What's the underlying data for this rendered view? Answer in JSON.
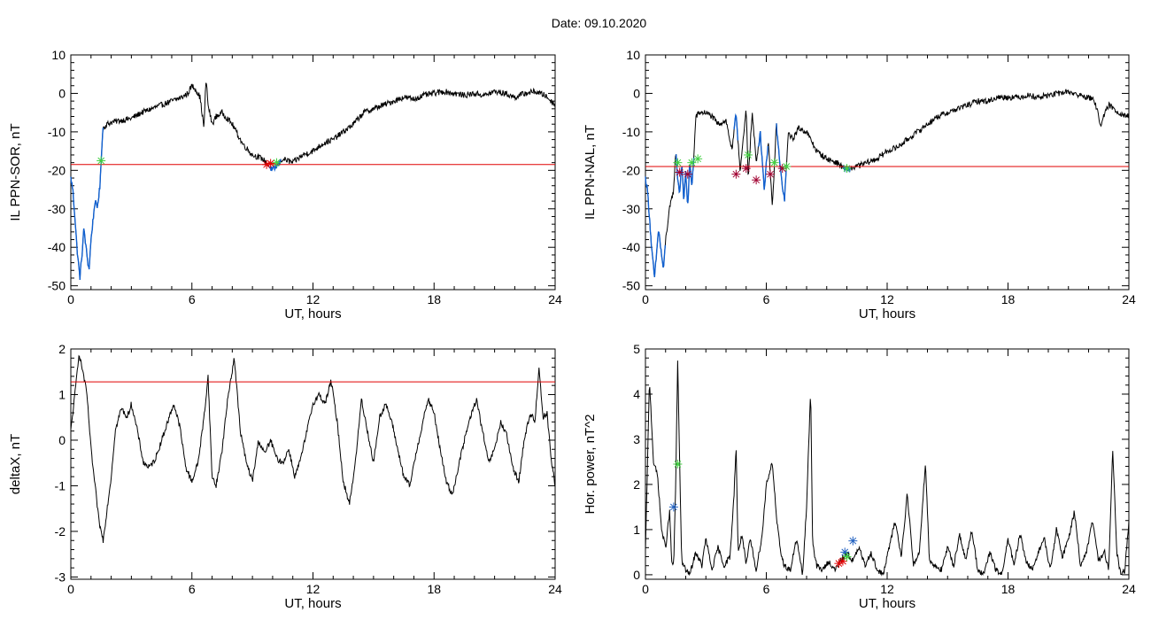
{
  "figure": {
    "title": "Date:  09.10.2020"
  },
  "colors": {
    "trace": "#000000",
    "threshold": "#e00000",
    "highlight": "#1060d0",
    "marker_green": "#40d040",
    "marker_red": "#e00000",
    "marker_blue": "#2060c0",
    "marker_darkred": "#a00030"
  },
  "chart_data": [
    {
      "id": "ppn-sor",
      "type": "line",
      "title": "",
      "xlabel": "UT, hours",
      "ylabel": "IL PPN-SOR, nT",
      "xlim": [
        0,
        24
      ],
      "ylim": [
        -51,
        10
      ],
      "xticks": [
        "0",
        "6",
        "12",
        "18",
        "24"
      ],
      "yticks": [
        "-50",
        "-40",
        "-30",
        "-20",
        "-10",
        "0",
        "10"
      ],
      "threshold": -18.5,
      "series": [
        {
          "x": [
            0,
            0.1,
            0.2,
            0.3,
            0.45,
            0.55,
            0.65,
            0.75,
            0.9,
            1.0,
            1.1,
            1.2,
            1.3,
            1.45,
            1.5,
            1.55,
            1.6,
            1.8,
            2.0,
            2.5,
            3.0,
            3.5,
            4.0,
            4.5,
            5.0,
            5.5,
            5.8,
            6.0,
            6.2,
            6.4,
            6.5,
            6.6,
            6.7,
            6.8,
            7.0,
            7.2,
            7.5,
            8.0,
            8.5,
            9.0,
            9.5,
            10.0,
            10.2,
            10.5,
            11.0,
            11.5,
            12.0,
            12.5,
            13.0,
            13.5,
            14.0,
            14.5,
            15.0,
            15.5,
            16.0,
            16.5,
            17.0,
            17.5,
            18.0,
            18.5,
            19.0,
            19.5,
            20.0,
            20.5,
            21.0,
            21.5,
            22.0,
            22.5,
            23.0,
            23.5,
            24.0
          ],
          "values": [
            -22,
            -25,
            -32,
            -40,
            -48,
            -42,
            -35,
            -40,
            -46,
            -38,
            -33,
            -28,
            -30,
            -24,
            -18,
            -12,
            -9,
            -8,
            -7.5,
            -7,
            -6.5,
            -5,
            -4,
            -3,
            -2,
            -1,
            0,
            2,
            1,
            -1,
            -5,
            -9,
            4,
            -3,
            -8,
            -6,
            -5,
            -8,
            -13,
            -16,
            -17,
            -20,
            -19,
            -17,
            -18,
            -16,
            -15,
            -13,
            -12,
            -10,
            -8,
            -5,
            -4,
            -3,
            -2,
            -1,
            -1.5,
            -0.5,
            0,
            0.5,
            0,
            -0.5,
            0,
            -0.5,
            0.5,
            0,
            -1,
            0,
            0.5,
            -0.5,
            -3
          ]
        }
      ],
      "highlight_segments": [
        [
          0,
          1.6
        ],
        [
          9.8,
          10.4
        ]
      ],
      "markers": [
        {
          "x": 1.5,
          "y": -17.5,
          "color": "green"
        },
        {
          "x": 9.7,
          "y": -18.5,
          "color": "red"
        },
        {
          "x": 9.9,
          "y": -18.2,
          "color": "red"
        },
        {
          "x": 10.2,
          "y": -18,
          "color": "green"
        }
      ]
    },
    {
      "id": "ppn-nal",
      "type": "line",
      "title": "",
      "xlabel": "UT, hours",
      "ylabel": "IL PPN-NAL, nT",
      "xlim": [
        0,
        24
      ],
      "ylim": [
        -51,
        10
      ],
      "xticks": [
        "0",
        "6",
        "12",
        "18",
        "24"
      ],
      "yticks": [
        "-50",
        "-40",
        "-30",
        "-20",
        "-10",
        "0",
        "10"
      ],
      "threshold": -19,
      "series": [
        {
          "x": [
            0,
            0.1,
            0.2,
            0.3,
            0.45,
            0.55,
            0.65,
            0.75,
            0.9,
            1.0,
            1.2,
            1.4,
            1.5,
            1.6,
            1.7,
            1.8,
            1.9,
            2.0,
            2.1,
            2.2,
            2.3,
            2.4,
            2.5,
            2.7,
            3.0,
            3.3,
            3.6,
            4.0,
            4.3,
            4.5,
            4.7,
            4.9,
            5.0,
            5.1,
            5.3,
            5.5,
            5.7,
            5.9,
            6.1,
            6.3,
            6.5,
            6.7,
            6.9,
            7.1,
            7.3,
            7.6,
            8.0,
            8.5,
            9.0,
            9.5,
            10.0,
            10.5,
            11.0,
            11.5,
            12.0,
            12.5,
            13.0,
            13.5,
            14.0,
            14.5,
            15.0,
            15.5,
            16.0,
            16.5,
            17.0,
            17.5,
            18.0,
            18.5,
            19.0,
            19.5,
            20.0,
            20.5,
            21.0,
            21.5,
            22.0,
            22.3,
            22.6,
            23.0,
            23.5,
            24.0
          ],
          "values": [
            -22,
            -25,
            -32,
            -40,
            -48,
            -42,
            -35,
            -40,
            -46,
            -38,
            -30,
            -25,
            -15,
            -22,
            -26,
            -18,
            -28,
            -20,
            -30,
            -18,
            -24,
            -17,
            -6,
            -5,
            -5,
            -6,
            -8,
            -7,
            -15,
            -5,
            -20,
            -10,
            -4,
            -22,
            -5,
            -18,
            -10,
            -25,
            -12,
            -30,
            -8,
            -20,
            -28,
            -10,
            -12,
            -9,
            -10,
            -15,
            -17,
            -18,
            -20,
            -19,
            -18,
            -17,
            -15,
            -14,
            -12,
            -10,
            -8,
            -6,
            -5,
            -4,
            -3,
            -2,
            -2,
            -1,
            -1,
            -1,
            -0.5,
            -1,
            -0.5,
            0,
            0.5,
            -0.5,
            -1,
            -2,
            -8,
            -3,
            -5,
            -6
          ]
        }
      ],
      "highlight_segments": [
        [
          0,
          1.0
        ],
        [
          1.5,
          2.4
        ],
        [
          4.4,
          4.6
        ],
        [
          5.6,
          6.1
        ],
        [
          6.5,
          7.0
        ],
        [
          9.8,
          10.2
        ]
      ],
      "markers": [
        {
          "x": 1.6,
          "y": -18,
          "color": "green"
        },
        {
          "x": 1.7,
          "y": -20.5,
          "color": "darkred"
        },
        {
          "x": 2.1,
          "y": -21,
          "color": "darkred"
        },
        {
          "x": 2.3,
          "y": -18,
          "color": "green"
        },
        {
          "x": 2.6,
          "y": -17,
          "color": "green"
        },
        {
          "x": 4.5,
          "y": -21,
          "color": "darkred"
        },
        {
          "x": 5.0,
          "y": -19.5,
          "color": "darkred"
        },
        {
          "x": 5.1,
          "y": -16,
          "color": "green"
        },
        {
          "x": 5.5,
          "y": -22.5,
          "color": "darkred"
        },
        {
          "x": 6.2,
          "y": -21,
          "color": "darkred"
        },
        {
          "x": 6.4,
          "y": -18,
          "color": "green"
        },
        {
          "x": 6.8,
          "y": -19.5,
          "color": "darkred"
        },
        {
          "x": 7.0,
          "y": -19,
          "color": "green"
        },
        {
          "x": 10.0,
          "y": -19.5,
          "color": "green"
        }
      ]
    },
    {
      "id": "deltax",
      "type": "line",
      "title": "",
      "xlabel": "UT, hours",
      "ylabel": "deltaX, nT",
      "xlim": [
        0,
        24
      ],
      "ylim": [
        -3.05,
        2
      ],
      "xticks": [
        "0",
        "6",
        "12",
        "18",
        "24"
      ],
      "yticks": [
        "-3",
        "-2",
        "-1",
        "0",
        "1",
        "2"
      ],
      "threshold": 1.28,
      "series": [
        {
          "x": [
            0,
            0.2,
            0.4,
            0.6,
            0.8,
            1.0,
            1.2,
            1.4,
            1.6,
            1.8,
            2.0,
            2.2,
            2.5,
            2.8,
            3.0,
            3.3,
            3.6,
            3.9,
            4.2,
            4.5,
            4.8,
            5.1,
            5.4,
            5.7,
            6.0,
            6.3,
            6.6,
            6.8,
            7.0,
            7.2,
            7.5,
            7.8,
            8.1,
            8.4,
            8.7,
            9.0,
            9.3,
            9.6,
            9.9,
            10.2,
            10.5,
            10.8,
            11.1,
            11.4,
            11.7,
            12.0,
            12.3,
            12.6,
            12.9,
            13.2,
            13.5,
            13.8,
            14.1,
            14.4,
            14.7,
            15.0,
            15.3,
            15.6,
            15.9,
            16.2,
            16.5,
            16.8,
            17.1,
            17.4,
            17.7,
            18.0,
            18.3,
            18.6,
            18.9,
            19.2,
            19.5,
            19.8,
            20.1,
            20.4,
            20.7,
            21.0,
            21.3,
            21.6,
            21.9,
            22.2,
            22.5,
            22.8,
            23.0,
            23.2,
            23.4,
            23.6,
            23.8,
            24.0
          ],
          "values": [
            0.2,
            1.0,
            1.9,
            1.5,
            1.0,
            -0.2,
            -1.0,
            -1.8,
            -2.2,
            -1.5,
            -0.8,
            0.2,
            0.7,
            0.5,
            0.8,
            0.2,
            -0.5,
            -0.6,
            -0.4,
            0.0,
            0.4,
            0.8,
            0.3,
            -0.6,
            -0.9,
            -0.5,
            0.5,
            1.4,
            -0.8,
            -1.0,
            -0.2,
            1.0,
            1.8,
            0.2,
            -0.5,
            -0.9,
            0.0,
            -0.3,
            0.0,
            -0.4,
            -0.5,
            -0.2,
            -0.8,
            -0.4,
            0.2,
            0.8,
            1.0,
            0.8,
            1.3,
            0.4,
            -0.9,
            -1.4,
            -0.5,
            0.9,
            0.2,
            -0.5,
            0.5,
            0.8,
            0.4,
            -0.2,
            -0.8,
            -1.0,
            -0.3,
            0.3,
            0.9,
            0.6,
            -0.2,
            -0.9,
            -1.2,
            -0.6,
            0.0,
            0.5,
            0.9,
            0.2,
            -0.5,
            -0.2,
            0.4,
            0.1,
            -0.6,
            -0.9,
            0.1,
            0.6,
            0.4,
            1.6,
            0.5,
            0.6,
            -0.4,
            -1.0
          ]
        }
      ],
      "highlight_segments": [],
      "markers": []
    },
    {
      "id": "hor-power",
      "type": "line",
      "title": "",
      "xlabel": "UT, hours",
      "ylabel": "Hor. power, nT^2",
      "xlim": [
        0,
        24
      ],
      "ylim": [
        -0.1,
        5
      ],
      "xticks": [
        "0",
        "6",
        "12",
        "18",
        "24"
      ],
      "yticks": [
        "0",
        "1",
        "2",
        "3",
        "4",
        "5"
      ],
      "threshold": null,
      "series": [
        {
          "x": [
            0,
            0.2,
            0.4,
            0.6,
            0.8,
            1.0,
            1.2,
            1.3,
            1.4,
            1.5,
            1.6,
            1.7,
            1.8,
            2.0,
            2.2,
            2.5,
            2.8,
            3.0,
            3.3,
            3.6,
            3.9,
            4.2,
            4.4,
            4.5,
            4.6,
            4.8,
            5.0,
            5.2,
            5.5,
            5.8,
            6.0,
            6.3,
            6.5,
            6.7,
            6.9,
            7.2,
            7.5,
            7.8,
            8.0,
            8.2,
            8.3,
            8.5,
            8.8,
            9.1,
            9.4,
            9.7,
            10.0,
            10.3,
            10.6,
            10.9,
            11.2,
            11.5,
            11.8,
            12.1,
            12.4,
            12.7,
            13.0,
            13.3,
            13.6,
            13.9,
            14.1,
            14.4,
            14.7,
            15.0,
            15.3,
            15.6,
            15.9,
            16.2,
            16.5,
            16.8,
            17.1,
            17.4,
            17.7,
            18.0,
            18.3,
            18.6,
            18.9,
            19.2,
            19.5,
            19.8,
            20.1,
            20.4,
            20.7,
            21.0,
            21.3,
            21.6,
            21.9,
            22.2,
            22.5,
            22.8,
            23.0,
            23.2,
            23.4,
            23.6,
            23.8,
            24.0
          ],
          "values": [
            0.5,
            4.3,
            2.5,
            2.2,
            1.0,
            0.6,
            1.4,
            0.3,
            0.2,
            2.0,
            4.7,
            2.5,
            0.3,
            0.1,
            0.0,
            0.5,
            0.2,
            0.8,
            0.1,
            0.6,
            0.2,
            0.4,
            1.8,
            2.9,
            0.5,
            0.9,
            0.2,
            0.8,
            0.1,
            0.9,
            2.0,
            2.5,
            1.3,
            0.5,
            0.2,
            0.1,
            0.8,
            0.0,
            1.5,
            4.1,
            0.7,
            0.2,
            0.1,
            0.3,
            0.1,
            0.3,
            0.5,
            0.3,
            0.6,
            0.2,
            0.5,
            0.1,
            0.0,
            0.6,
            1.2,
            0.4,
            1.8,
            0.2,
            0.5,
            2.5,
            0.3,
            0.2,
            0.1,
            0.6,
            0.2,
            0.9,
            0.3,
            1.0,
            0.1,
            0.0,
            0.5,
            0.1,
            0.0,
            0.8,
            0.2,
            0.9,
            0.3,
            0.1,
            0.5,
            0.8,
            0.1,
            1.0,
            0.4,
            0.8,
            1.4,
            0.2,
            0.5,
            1.2,
            0.3,
            0.5,
            0.1,
            2.8,
            0.5,
            0.0,
            0.1,
            1.2
          ]
        }
      ],
      "highlight_segments": [],
      "markers": [
        {
          "x": 1.4,
          "y": 1.5,
          "color": "blue"
        },
        {
          "x": 1.6,
          "y": 2.45,
          "color": "green"
        },
        {
          "x": 9.6,
          "y": 0.25,
          "color": "red"
        },
        {
          "x": 9.8,
          "y": 0.3,
          "color": "red"
        },
        {
          "x": 9.9,
          "y": 0.5,
          "color": "blue"
        },
        {
          "x": 10.0,
          "y": 0.4,
          "color": "green"
        },
        {
          "x": 10.3,
          "y": 0.75,
          "color": "blue"
        }
      ]
    }
  ]
}
